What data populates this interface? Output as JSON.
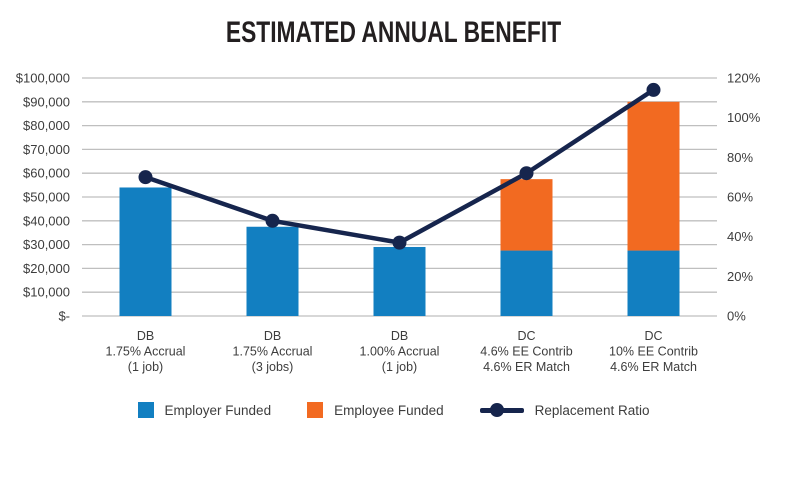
{
  "title": "ESTIMATED ANNUAL BENEFIT",
  "colors": {
    "employer_bar": "#127FC1",
    "employee_bar": "#F26A21",
    "ratio_line": "#16254D",
    "gridline": "#BFBFBF",
    "axis_text": "#3D3D3D",
    "title_text": "#231F20"
  },
  "chart_data": {
    "type": "bar",
    "subtype": "stacked-bar-with-line",
    "title": "ESTIMATED ANNUAL BENEFIT",
    "categories": [
      [
        "DB",
        "1.75% Accrual",
        "(1 job)"
      ],
      [
        "DB",
        "1.75% Accrual",
        "(3 jobs)"
      ],
      [
        "DB",
        "1.00% Accrual",
        "(1 job)"
      ],
      [
        "DC",
        "4.6% EE Contrib",
        "4.6% ER Match"
      ],
      [
        "DC",
        "10% EE Contrib",
        "4.6% ER Match"
      ]
    ],
    "series": [
      {
        "name": "Employer Funded",
        "type": "bar",
        "axis": "left",
        "color": "#127FC1",
        "values": [
          54000,
          37500,
          29000,
          27500,
          27500
        ]
      },
      {
        "name": "Employee Funded",
        "type": "bar",
        "axis": "left",
        "color": "#F26A21",
        "values": [
          0,
          0,
          0,
          30000,
          62500
        ]
      },
      {
        "name": "Replacement Ratio",
        "type": "line",
        "axis": "right",
        "color": "#16254D",
        "values": [
          70,
          48,
          37,
          72,
          114
        ]
      }
    ],
    "left_axis": {
      "min": 0,
      "max": 100000,
      "step": 10000,
      "tick_labels": [
        "$-",
        "$10,000",
        "$20,000",
        "$30,000",
        "$40,000",
        "$50,000",
        "$60,000",
        "$70,000",
        "$80,000",
        "$90,000",
        "$100,000"
      ]
    },
    "right_axis": {
      "min": 0,
      "max": 120,
      "step": 20,
      "tick_labels": [
        "0%",
        "20%",
        "40%",
        "60%",
        "80%",
        "100%",
        "120%"
      ]
    },
    "grid": true,
    "legend_position": "bottom"
  },
  "legend": {
    "items": [
      {
        "label": "Employer Funded",
        "marker": "square"
      },
      {
        "label": "Employee Funded",
        "marker": "square"
      },
      {
        "label": "Replacement Ratio",
        "marker": "line-dot"
      }
    ]
  }
}
